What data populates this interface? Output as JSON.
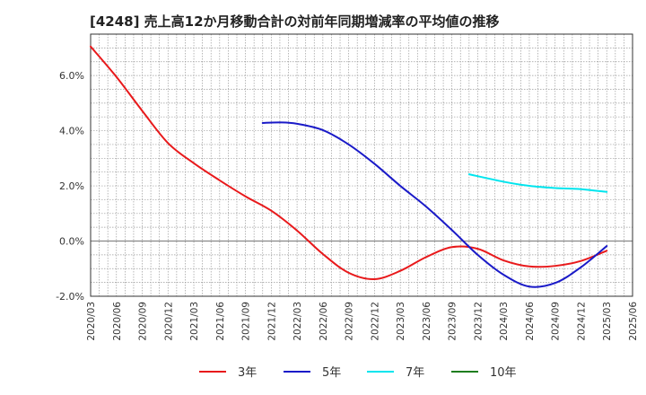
{
  "chart_data": {
    "type": "line",
    "title": "[4248]  売上高12か月移動合計の対前年同期増減率の平均値の推移",
    "xlabel": "",
    "ylabel": "",
    "y_unit": "%",
    "ylim": [
      -2.0,
      7.5
    ],
    "yticks": [
      6.0,
      4.0,
      2.0,
      0.0,
      -2.0
    ],
    "ytick_labels": [
      "6.0%",
      "4.0%",
      "2.0%",
      "0.0%",
      "-2.0%"
    ],
    "x_range": [
      "2020/03",
      "2025/06"
    ],
    "xtick_labels": [
      "2020/03",
      "2020/06",
      "2020/09",
      "2020/12",
      "2021/03",
      "2021/06",
      "2021/09",
      "2021/12",
      "2022/03",
      "2022/06",
      "2022/09",
      "2022/12",
      "2023/03",
      "2023/06",
      "2023/09",
      "2023/12",
      "2024/03",
      "2024/06",
      "2024/09",
      "2024/12",
      "2025/03",
      "2025/06"
    ],
    "grid": true,
    "legend_position": "bottom",
    "series": [
      {
        "name": "3年",
        "color": "#e8191b",
        "points": [
          [
            "2020/03",
            7.05
          ],
          [
            "2020/06",
            5.95
          ],
          [
            "2020/09",
            4.72
          ],
          [
            "2020/12",
            3.55
          ],
          [
            "2021/03",
            2.82
          ],
          [
            "2021/06",
            2.2
          ],
          [
            "2021/09",
            1.62
          ],
          [
            "2021/12",
            1.1
          ],
          [
            "2022/03",
            0.38
          ],
          [
            "2022/06",
            -0.47
          ],
          [
            "2022/09",
            -1.15
          ],
          [
            "2022/12",
            -1.38
          ],
          [
            "2023/03",
            -1.08
          ],
          [
            "2023/06",
            -0.58
          ],
          [
            "2023/09",
            -0.22
          ],
          [
            "2023/12",
            -0.28
          ],
          [
            "2024/03",
            -0.7
          ],
          [
            "2024/06",
            -0.92
          ],
          [
            "2024/09",
            -0.9
          ],
          [
            "2024/12",
            -0.72
          ],
          [
            "2025/03",
            -0.35
          ]
        ]
      },
      {
        "name": "5年",
        "color": "#1a1ac8",
        "points": [
          [
            "2021/11",
            4.28
          ],
          [
            "2022/01",
            4.3
          ],
          [
            "2022/03",
            4.25
          ],
          [
            "2022/06",
            4.02
          ],
          [
            "2022/09",
            3.5
          ],
          [
            "2022/12",
            2.8
          ],
          [
            "2023/03",
            2.0
          ],
          [
            "2023/06",
            1.25
          ],
          [
            "2023/09",
            0.4
          ],
          [
            "2023/12",
            -0.5
          ],
          [
            "2024/03",
            -1.22
          ],
          [
            "2024/06",
            -1.65
          ],
          [
            "2024/09",
            -1.52
          ],
          [
            "2024/12",
            -0.95
          ],
          [
            "2025/03",
            -0.18
          ]
        ]
      },
      {
        "name": "7年",
        "color": "#00e5ee",
        "points": [
          [
            "2023/11",
            2.42
          ],
          [
            "2024/03",
            2.15
          ],
          [
            "2024/06",
            2.0
          ],
          [
            "2024/09",
            1.92
          ],
          [
            "2024/12",
            1.88
          ],
          [
            "2025/03",
            1.78
          ]
        ]
      },
      {
        "name": "10年",
        "color": "#1e7d1e",
        "points": []
      }
    ]
  }
}
